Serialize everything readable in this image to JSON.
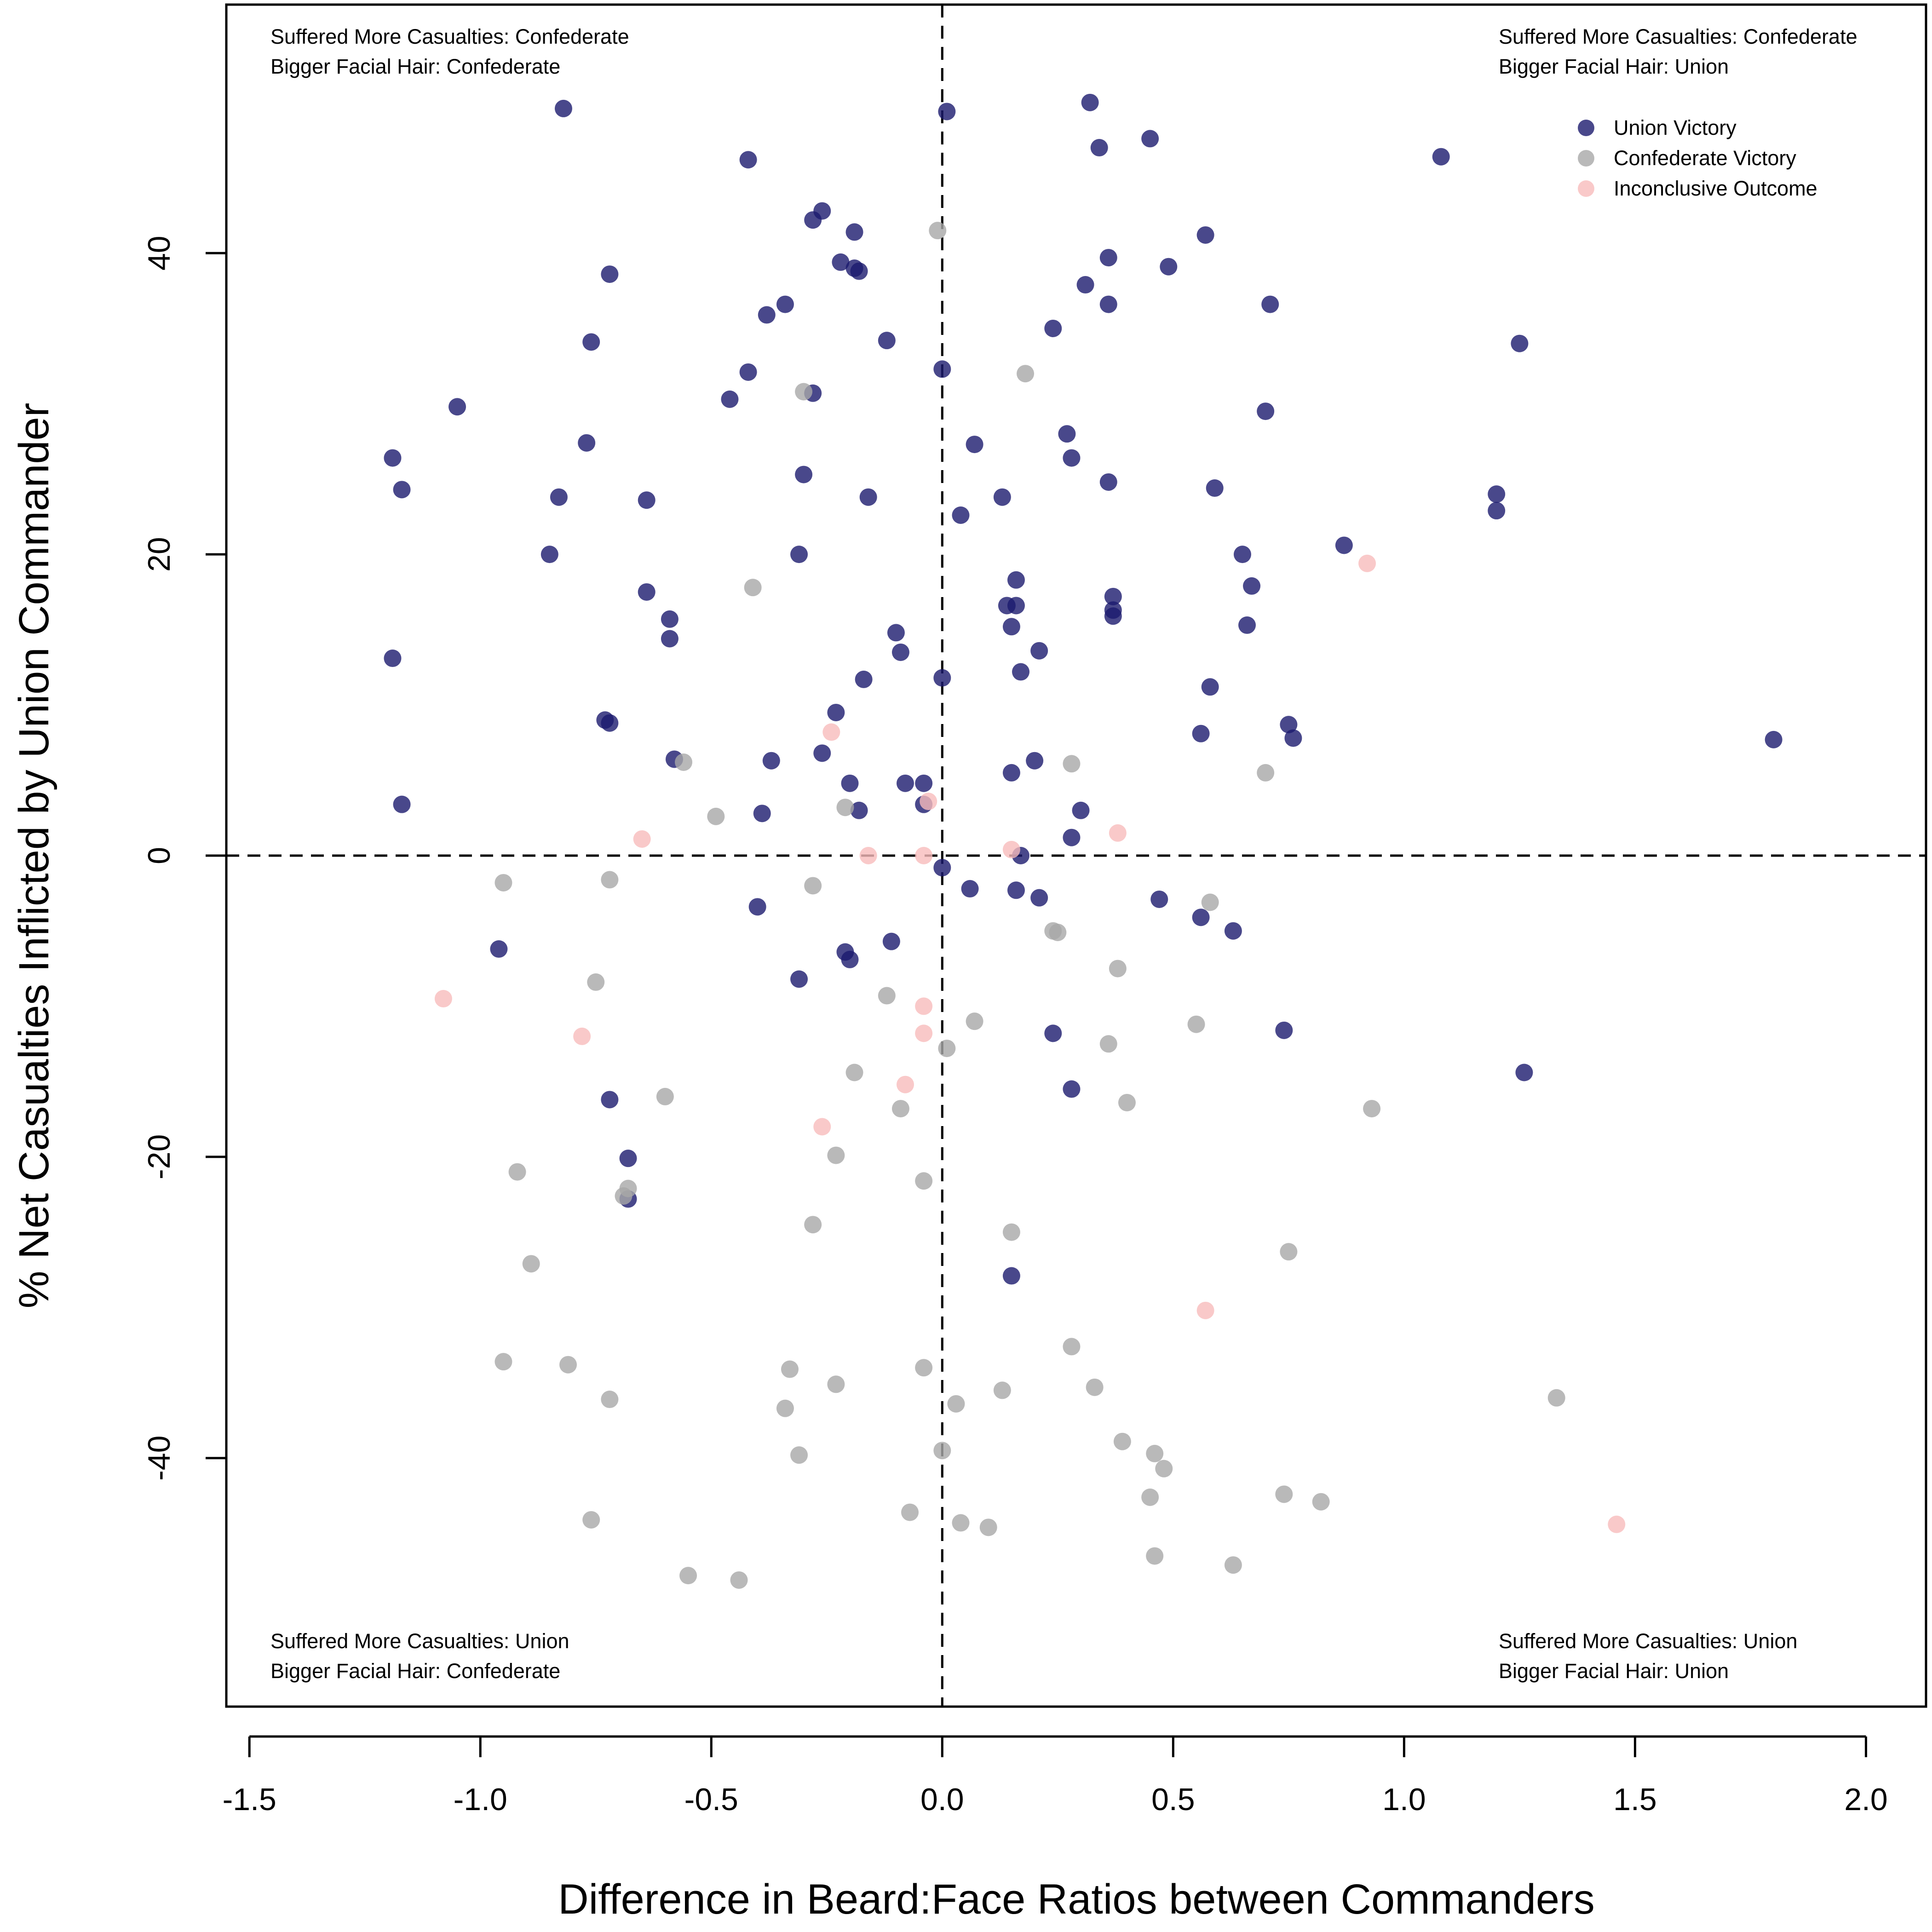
{
  "chart_data": {
    "type": "scatter",
    "xlabel": "Difference in Beard:Face Ratios between Commanders",
    "ylabel": "% Net Casualties Inflicted by Union Commander",
    "xlim": [
      -1.55,
      2.13
    ],
    "ylim": [
      -56.5,
      56.5
    ],
    "x_ticks": [
      -1.5,
      -1.0,
      -0.5,
      0.0,
      0.5,
      1.0,
      1.5,
      2.0
    ],
    "x_tick_labels": [
      "-1.5",
      "-1.0",
      "-0.5",
      "0.0",
      "0.5",
      "1.0",
      "1.5",
      "2.0"
    ],
    "y_ticks": [
      -40,
      -20,
      0,
      20,
      40
    ],
    "y_tick_labels": [
      "-40",
      "-20",
      "0",
      "20",
      "40"
    ],
    "reference_lines": {
      "x": 0,
      "y": 0,
      "style": "dashed"
    },
    "grid": false,
    "legend_placement": "top-right",
    "quadrant_labels": {
      "top_left": [
        "Suffered More Casualties: Confederate",
        "Bigger Facial Hair: Confederate"
      ],
      "top_right": [
        "Suffered More Casualties: Confederate",
        "Bigger Facial Hair: Union"
      ],
      "bottom_left": [
        "Suffered More Casualties: Union",
        "Bigger Facial Hair: Confederate"
      ],
      "bottom_right": [
        "Suffered More Casualties: Union",
        "Bigger Facial Hair: Union"
      ]
    },
    "series": [
      {
        "name": "Union Victory",
        "color": "#1c1a6e",
        "points": [
          [
            -0.82,
            49.6
          ],
          [
            -0.42,
            46.2
          ],
          [
            0.01,
            49.4
          ],
          [
            0.32,
            50.0
          ],
          [
            0.34,
            47.0
          ],
          [
            0.45,
            47.6
          ],
          [
            1.08,
            46.4
          ],
          [
            -0.28,
            42.2
          ],
          [
            -0.26,
            42.8
          ],
          [
            -0.19,
            41.4
          ],
          [
            -0.72,
            38.6
          ],
          [
            -0.22,
            39.4
          ],
          [
            -0.19,
            39.0
          ],
          [
            -0.18,
            38.8
          ],
          [
            0.36,
            39.7
          ],
          [
            0.49,
            39.1
          ],
          [
            0.57,
            41.2
          ],
          [
            -0.34,
            36.6
          ],
          [
            -0.38,
            35.9
          ],
          [
            0.31,
            37.9
          ],
          [
            0.36,
            36.6
          ],
          [
            0.71,
            36.6
          ],
          [
            -0.76,
            34.1
          ],
          [
            -0.12,
            34.2
          ],
          [
            0.24,
            35.0
          ],
          [
            1.25,
            34.0
          ],
          [
            -0.42,
            32.1
          ],
          [
            0.0,
            32.3
          ],
          [
            -1.05,
            29.8
          ],
          [
            -0.46,
            30.3
          ],
          [
            -0.28,
            30.7
          ],
          [
            0.7,
            29.5
          ],
          [
            -0.77,
            27.4
          ],
          [
            -1.19,
            26.4
          ],
          [
            0.27,
            28.0
          ],
          [
            0.07,
            27.3
          ],
          [
            0.28,
            26.4
          ],
          [
            -0.3,
            25.3
          ],
          [
            -1.17,
            24.3
          ],
          [
            -0.83,
            23.8
          ],
          [
            -0.64,
            23.6
          ],
          [
            -0.16,
            23.8
          ],
          [
            0.04,
            22.6
          ],
          [
            0.13,
            23.8
          ],
          [
            0.36,
            24.8
          ],
          [
            0.59,
            24.4
          ],
          [
            1.2,
            24.0
          ],
          [
            1.2,
            22.9
          ],
          [
            -0.85,
            20.0
          ],
          [
            -0.31,
            20.0
          ],
          [
            0.65,
            20.0
          ],
          [
            0.87,
            20.6
          ],
          [
            -0.64,
            17.5
          ],
          [
            0.16,
            18.3
          ],
          [
            0.37,
            17.2
          ],
          [
            0.67,
            17.9
          ],
          [
            -0.59,
            15.7
          ],
          [
            -0.59,
            14.4
          ],
          [
            0.14,
            16.6
          ],
          [
            0.16,
            16.6
          ],
          [
            0.37,
            16.3
          ],
          [
            0.37,
            15.9
          ],
          [
            0.15,
            15.2
          ],
          [
            0.66,
            15.3
          ],
          [
            -1.19,
            13.1
          ],
          [
            -0.1,
            14.8
          ],
          [
            -0.09,
            13.5
          ],
          [
            0.21,
            13.6
          ],
          [
            0.17,
            12.2
          ],
          [
            0.0,
            11.8
          ],
          [
            -0.17,
            11.7
          ],
          [
            0.58,
            11.2
          ],
          [
            -0.23,
            9.5
          ],
          [
            -0.73,
            9.0
          ],
          [
            -0.72,
            8.8
          ],
          [
            0.75,
            8.7
          ],
          [
            0.76,
            7.8
          ],
          [
            1.8,
            7.7
          ],
          [
            0.56,
            8.1
          ],
          [
            -0.58,
            6.4
          ],
          [
            -0.37,
            6.3
          ],
          [
            -0.26,
            6.8
          ],
          [
            0.2,
            6.3
          ],
          [
            0.15,
            5.5
          ],
          [
            -1.17,
            3.4
          ],
          [
            -0.39,
            2.8
          ],
          [
            -0.2,
            4.8
          ],
          [
            -0.08,
            4.8
          ],
          [
            -0.04,
            4.8
          ],
          [
            -0.18,
            3.0
          ],
          [
            -0.04,
            3.4
          ],
          [
            0.3,
            3.0
          ],
          [
            0.28,
            1.2
          ],
          [
            0.17,
            0.0
          ],
          [
            0.0,
            -0.8
          ],
          [
            -0.4,
            -3.4
          ],
          [
            0.06,
            -2.2
          ],
          [
            0.16,
            -2.3
          ],
          [
            0.21,
            -2.8
          ],
          [
            0.47,
            -2.9
          ],
          [
            0.56,
            -4.1
          ],
          [
            0.63,
            -5.0
          ],
          [
            -0.96,
            -6.2
          ],
          [
            -0.21,
            -6.4
          ],
          [
            -0.2,
            -6.9
          ],
          [
            -0.11,
            -5.7
          ],
          [
            -0.31,
            -8.2
          ],
          [
            0.24,
            -11.8
          ],
          [
            0.74,
            -11.6
          ],
          [
            -0.72,
            -16.2
          ],
          [
            0.28,
            -15.5
          ],
          [
            1.26,
            -14.4
          ],
          [
            -0.68,
            -20.1
          ],
          [
            -0.68,
            -22.8
          ],
          [
            0.15,
            -27.9
          ]
        ]
      },
      {
        "name": "Confederate Victory",
        "color": "#a8a8a8",
        "points": [
          [
            -0.01,
            41.5
          ],
          [
            0.18,
            32.0
          ],
          [
            -0.3,
            30.8
          ],
          [
            -0.41,
            17.8
          ],
          [
            -0.56,
            6.2
          ],
          [
            0.28,
            6.1
          ],
          [
            0.7,
            5.5
          ],
          [
            -0.49,
            2.6
          ],
          [
            -0.21,
            3.2
          ],
          [
            -0.95,
            -1.8
          ],
          [
            -0.72,
            -1.6
          ],
          [
            -0.28,
            -2.0
          ],
          [
            0.58,
            -3.1
          ],
          [
            0.24,
            -5.0
          ],
          [
            0.25,
            -5.1
          ],
          [
            0.38,
            -7.5
          ],
          [
            -0.75,
            -8.4
          ],
          [
            -0.12,
            -9.3
          ],
          [
            0.07,
            -11.0
          ],
          [
            0.55,
            -11.2
          ],
          [
            0.36,
            -12.5
          ],
          [
            0.01,
            -12.8
          ],
          [
            -0.19,
            -14.4
          ],
          [
            -0.6,
            -16.0
          ],
          [
            0.4,
            -16.4
          ],
          [
            -0.09,
            -16.8
          ],
          [
            0.93,
            -16.8
          ],
          [
            -0.23,
            -19.9
          ],
          [
            -0.92,
            -21.0
          ],
          [
            -0.04,
            -21.6
          ],
          [
            -0.68,
            -22.1
          ],
          [
            -0.69,
            -22.6
          ],
          [
            -0.28,
            -24.5
          ],
          [
            0.15,
            -25.0
          ],
          [
            0.75,
            -26.3
          ],
          [
            -0.89,
            -27.1
          ],
          [
            0.28,
            -32.6
          ],
          [
            -0.95,
            -33.6
          ],
          [
            -0.81,
            -33.8
          ],
          [
            -0.33,
            -34.1
          ],
          [
            -0.04,
            -34.0
          ],
          [
            0.13,
            -35.5
          ],
          [
            0.33,
            -35.3
          ],
          [
            -0.72,
            -36.1
          ],
          [
            -0.34,
            -36.7
          ],
          [
            -0.23,
            -35.1
          ],
          [
            0.03,
            -36.4
          ],
          [
            1.33,
            -36.0
          ],
          [
            0.39,
            -38.9
          ],
          [
            0.46,
            -39.7
          ],
          [
            -0.31,
            -39.8
          ],
          [
            0.0,
            -39.5
          ],
          [
            0.48,
            -40.7
          ],
          [
            0.45,
            -42.6
          ],
          [
            0.74,
            -42.4
          ],
          [
            0.82,
            -42.9
          ],
          [
            -0.07,
            -43.6
          ],
          [
            -0.76,
            -44.1
          ],
          [
            0.04,
            -44.3
          ],
          [
            0.1,
            -44.6
          ],
          [
            0.46,
            -46.5
          ],
          [
            0.63,
            -47.1
          ],
          [
            -0.55,
            -47.8
          ],
          [
            -0.44,
            -48.1
          ]
        ]
      },
      {
        "name": "Inconclusive Outcome",
        "color": "#f7bcbc",
        "points": [
          [
            0.92,
            19.4
          ],
          [
            -0.24,
            8.2
          ],
          [
            -0.03,
            3.6
          ],
          [
            -0.65,
            1.1
          ],
          [
            -0.16,
            0.0
          ],
          [
            -0.04,
            0.0
          ],
          [
            0.15,
            0.4
          ],
          [
            0.38,
            1.5
          ],
          [
            -1.08,
            -9.5
          ],
          [
            -0.04,
            -10.0
          ],
          [
            -0.04,
            -11.8
          ],
          [
            -0.78,
            -12.0
          ],
          [
            -0.08,
            -15.2
          ],
          [
            -0.26,
            -18.0
          ],
          [
            0.57,
            -30.2
          ],
          [
            1.46,
            -44.4
          ]
        ]
      }
    ]
  }
}
